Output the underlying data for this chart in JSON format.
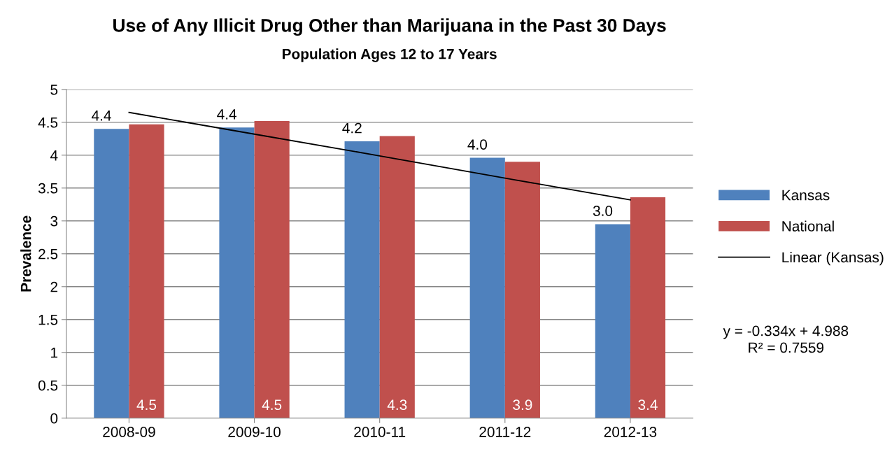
{
  "chart_data": {
    "type": "bar",
    "title": "Use of Any Illicit Drug Other than Marijuana in the Past 30 Days",
    "subtitle": "Population Ages 12 to 17 Years",
    "ylabel": "Prevalence",
    "categories": [
      "2008-09",
      "2009-10",
      "2010-11",
      "2011-12",
      "2012-13"
    ],
    "series": [
      {
        "name": "Kansas",
        "color": "#4f81bd",
        "values": [
          4.4,
          4.42,
          4.21,
          3.96,
          2.95
        ],
        "value_labels": [
          "4.4",
          "4.4",
          "4.2",
          "4.0",
          "3.0"
        ]
      },
      {
        "name": "National",
        "color": "#c0504d",
        "values": [
          4.47,
          4.52,
          4.29,
          3.9,
          3.36
        ],
        "value_labels": [
          "4.5",
          "4.5",
          "4.3",
          "3.9",
          "3.4"
        ]
      },
      {
        "name": "Linear (Kansas)",
        "type": "line",
        "color": "#000000",
        "values": [
          4.65,
          4.32,
          3.99,
          3.65,
          3.32
        ]
      }
    ],
    "ylim": [
      0,
      5
    ],
    "yticks": [
      0,
      0.5,
      1,
      1.5,
      2,
      2.5,
      3,
      3.5,
      4,
      4.5,
      5
    ],
    "grid": "y",
    "legend": "right",
    "annotations": [
      "y = -0.334x + 4.988\nR² = 0.7559"
    ]
  }
}
